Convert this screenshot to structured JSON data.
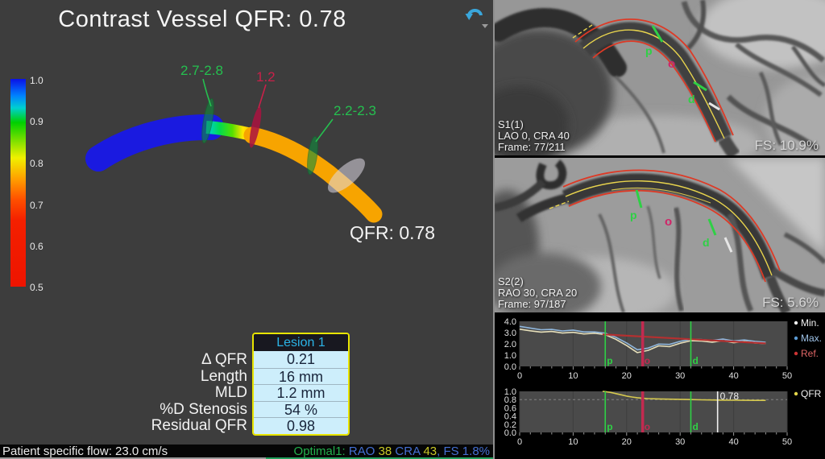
{
  "left_panel": {
    "title": "Contrast Vessel QFR: 0.78",
    "colorbar_ticks": [
      "1.0",
      "0.9",
      "0.8",
      "0.7",
      "0.6",
      "0.5"
    ],
    "vessel_annotations": {
      "proximal_ref": {
        "label": "2.7-2.8",
        "color": "#25c04f"
      },
      "mld": {
        "label": "1.2",
        "color": "#c92049"
      },
      "distal_ref": {
        "label": "2.2-2.3",
        "color": "#25c04f"
      }
    },
    "vessel_qfr_label": "QFR: 0.78",
    "lesion_table": {
      "header": "Lesion 1",
      "header_color": "#2bb3e6",
      "border_color": "#e8e400",
      "rows": [
        {
          "label": "Δ QFR",
          "value": "0.21"
        },
        {
          "label": "Length",
          "value": "16 mm"
        },
        {
          "label": "MLD",
          "value": "1.2 mm"
        },
        {
          "label": "%D Stenosis",
          "value": "54 %"
        },
        {
          "label": "Residual QFR",
          "value": "0.98"
        }
      ]
    },
    "status_bar": {
      "flow_label": "Patient specific flow: 23.0 cm/s",
      "optimal_segments": [
        {
          "text": "Optimal1: ",
          "color": "#21b14c"
        },
        {
          "text": "RAO ",
          "color": "#4470d4"
        },
        {
          "text": "38",
          "color": "#c9c926"
        },
        {
          "text": " CRA ",
          "color": "#4470d4"
        },
        {
          "text": "43",
          "color": "#c9c926"
        },
        {
          "text": ", FS 1.8%",
          "color": "#4470d4"
        }
      ]
    }
  },
  "angio_panels": [
    {
      "series_label": "S1(1)",
      "projection": "LAO 0, CRA 40",
      "frame": "Frame: 77/211",
      "fs_label": "FS: 10.9%",
      "markers": {
        "p": "p",
        "o": "o",
        "d": "d"
      }
    },
    {
      "series_label": "S2(2)",
      "projection": "RAO 30, CRA 20",
      "frame": "Frame: 97/187",
      "fs_label": "FS: 5.6%",
      "markers": {
        "p": "p",
        "o": "o",
        "d": "d"
      }
    }
  ],
  "chart_data": [
    {
      "type": "line",
      "title": "",
      "xlabel": "",
      "ylabel": "",
      "xlim": [
        0,
        50
      ],
      "ylim": [
        0.0,
        4.0
      ],
      "x_ticks": [
        "0",
        "10",
        "20",
        "30",
        "40",
        "50"
      ],
      "y_ticks": [
        "0.0",
        "1.0",
        "2.0",
        "3.0",
        "4.0"
      ],
      "legend_position": "right",
      "legend": [
        {
          "label": "Min.",
          "dot_color": "#f2f2f2",
          "text_color": "#f2f2f2"
        },
        {
          "label": "Max.",
          "dot_color": "#5b9bd5",
          "text_color": "#9fc3e8"
        },
        {
          "label": "Ref.",
          "dot_color": "#cc3333",
          "text_color": "#e06666"
        }
      ],
      "markers": [
        {
          "label": "p",
          "x": 16,
          "color": "#2fd045"
        },
        {
          "label": "o",
          "x": 23,
          "color": "#c22a50"
        },
        {
          "label": "d",
          "x": 32,
          "color": "#2fd045"
        }
      ],
      "series": [
        {
          "name": "Min.",
          "color": "#e6dfba",
          "x": [
            0,
            2,
            4,
            6,
            8,
            10,
            12,
            14,
            16,
            18,
            20,
            22,
            24,
            26,
            28,
            30,
            32,
            34,
            36,
            38,
            40,
            42,
            44,
            46
          ],
          "values": [
            3.3,
            3.16,
            3.04,
            3.1,
            2.96,
            3.02,
            2.88,
            2.94,
            2.82,
            2.4,
            1.85,
            1.22,
            1.42,
            1.82,
            1.75,
            2.06,
            2.28,
            2.26,
            2.15,
            2.28,
            2.1,
            2.22,
            2.08,
            2.02
          ]
        },
        {
          "name": "Max.",
          "color": "#8fb6dc",
          "x": [
            0,
            2,
            4,
            6,
            8,
            10,
            12,
            14,
            16,
            18,
            20,
            22,
            24,
            26,
            28,
            30,
            32,
            34,
            36,
            38,
            40,
            42,
            44,
            46
          ],
          "values": [
            3.55,
            3.4,
            3.25,
            3.28,
            3.14,
            3.22,
            3.06,
            3.06,
            2.94,
            2.58,
            2.08,
            1.48,
            1.62,
            1.98,
            1.95,
            2.22,
            2.4,
            2.38,
            2.3,
            2.42,
            2.26,
            2.34,
            2.22,
            2.14
          ]
        },
        {
          "name": "Ref.",
          "color": "#b43030",
          "x": [
            15.5,
            46
          ],
          "values": [
            2.84,
            2.04
          ]
        }
      ]
    },
    {
      "type": "line",
      "title": "",
      "xlabel": "",
      "ylabel": "",
      "xlim": [
        0,
        50
      ],
      "ylim": [
        0.0,
        1.0
      ],
      "x_ticks": [
        "0",
        "10",
        "20",
        "30",
        "40",
        "50"
      ],
      "y_ticks": [
        "0.0",
        "0.2",
        "0.4",
        "0.6",
        "0.8",
        "1.0"
      ],
      "legend_position": "right",
      "legend": [
        {
          "label": "QFR",
          "dot_color": "#e3d54a",
          "text_color": "#f2f2f2"
        }
      ],
      "markers": [
        {
          "label": "p",
          "x": 16,
          "color": "#2fd045"
        },
        {
          "label": "o",
          "x": 23,
          "color": "#c22a50"
        },
        {
          "label": "d",
          "x": 32,
          "color": "#2fd045"
        }
      ],
      "value_line": {
        "x": 37,
        "label": "0.78",
        "color": "#f0f0f0"
      },
      "gridline_y": 0.8,
      "series": [
        {
          "name": "QFR",
          "color": "#d6c94f",
          "x": [
            15.5,
            16,
            17,
            18,
            19,
            20,
            21,
            22,
            23,
            24,
            26,
            28,
            30,
            32,
            34,
            36,
            38,
            40,
            42,
            44,
            46
          ],
          "values": [
            1.0,
            0.995,
            0.975,
            0.945,
            0.915,
            0.885,
            0.862,
            0.845,
            0.832,
            0.824,
            0.815,
            0.81,
            0.805,
            0.8,
            0.795,
            0.79,
            0.787,
            0.785,
            0.783,
            0.781,
            0.78
          ]
        }
      ]
    }
  ]
}
